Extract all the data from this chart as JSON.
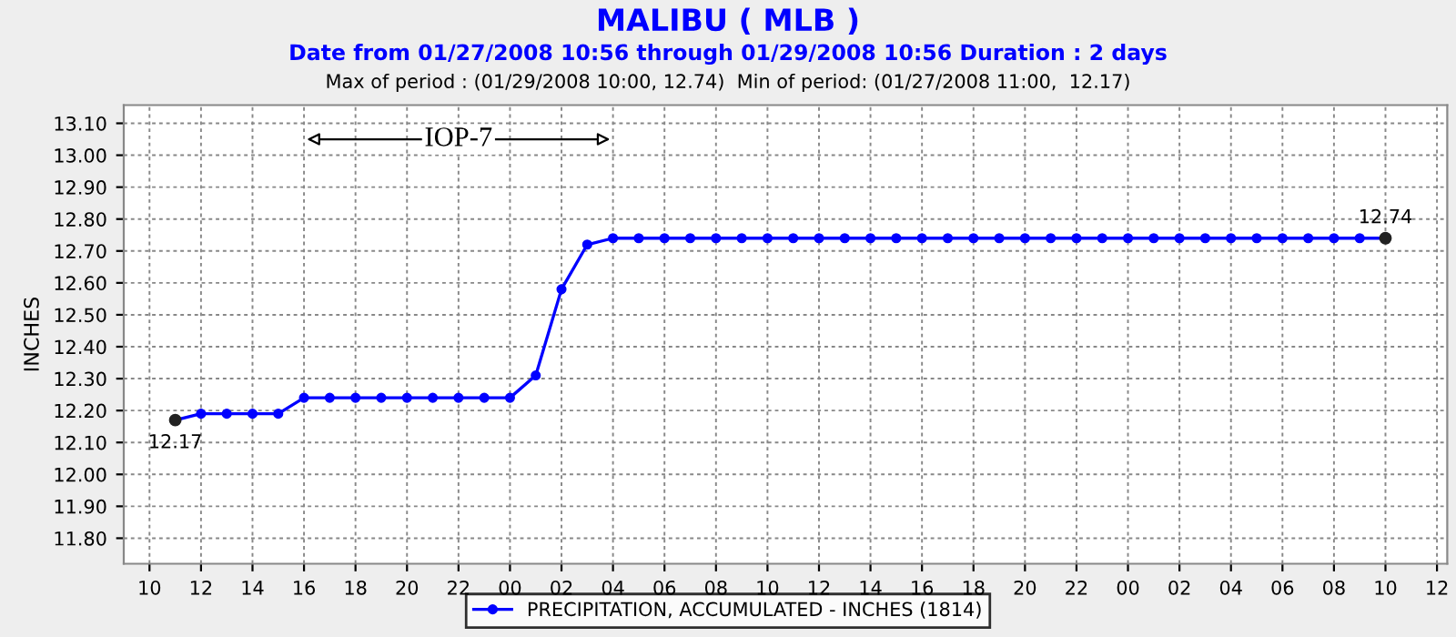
{
  "chart_data": {
    "type": "line",
    "title": "MALIBU ( MLB )",
    "subtitle": "Date from 01/27/2008 10:56 through 01/29/2008 10:56 Duration : 2 days",
    "ylabel": "INCHES",
    "annotations": [
      "Max of period : (01/29/2008 10:00, 12.74)  Min of period: (01/27/2008 11:00,  12.17)",
      {
        "text": "12.17",
        "x": 11,
        "y": 12.17
      },
      {
        "text": "12.74",
        "x": 58,
        "y": 12.74
      },
      {
        "text": "IOP-7",
        "x": 22,
        "y": 13.05
      }
    ],
    "x": [
      11,
      12,
      13,
      14,
      15,
      16,
      17,
      18,
      19,
      20,
      21,
      22,
      23,
      24,
      25,
      26,
      27,
      28,
      29,
      30,
      31,
      32,
      33,
      34,
      35,
      36,
      37,
      38,
      39,
      40,
      41,
      42,
      43,
      44,
      45,
      46,
      47,
      48,
      49,
      50,
      51,
      52,
      53,
      54,
      55,
      56,
      57,
      58
    ],
    "series": [
      {
        "name": "PRECIPITATION, ACCUMULATED - INCHES (1814)",
        "color": "#0000ff",
        "values": [
          12.17,
          12.19,
          12.19,
          12.19,
          12.19,
          12.24,
          12.24,
          12.24,
          12.24,
          12.24,
          12.24,
          12.24,
          12.24,
          12.24,
          12.31,
          12.58,
          12.72,
          12.74,
          12.74,
          12.74,
          12.74,
          12.74,
          12.74,
          12.74,
          12.74,
          12.74,
          12.74,
          12.74,
          12.74,
          12.74,
          12.74,
          12.74,
          12.74,
          12.74,
          12.74,
          12.74,
          12.74,
          12.74,
          12.74,
          12.74,
          12.74,
          12.74,
          12.74,
          12.74,
          12.74,
          12.74,
          12.74,
          12.74
        ]
      }
    ],
    "xlim": [
      9,
      60.4
    ],
    "xticks": [
      {
        "value": 10,
        "label": "10"
      },
      {
        "value": 12,
        "label": "12"
      },
      {
        "value": 14,
        "label": "14"
      },
      {
        "value": 16,
        "label": "16"
      },
      {
        "value": 18,
        "label": "18"
      },
      {
        "value": 20,
        "label": "20"
      },
      {
        "value": 22,
        "label": "22"
      },
      {
        "value": 24,
        "label": "00"
      },
      {
        "value": 26,
        "label": "02"
      },
      {
        "value": 28,
        "label": "04"
      },
      {
        "value": 30,
        "label": "06"
      },
      {
        "value": 32,
        "label": "08"
      },
      {
        "value": 34,
        "label": "10"
      },
      {
        "value": 36,
        "label": "12"
      },
      {
        "value": 38,
        "label": "14"
      },
      {
        "value": 40,
        "label": "16"
      },
      {
        "value": 42,
        "label": "18"
      },
      {
        "value": 44,
        "label": "20"
      },
      {
        "value": 46,
        "label": "22"
      },
      {
        "value": 48,
        "label": "00"
      },
      {
        "value": 50,
        "label": "02"
      },
      {
        "value": 52,
        "label": "04"
      },
      {
        "value": 54,
        "label": "06"
      },
      {
        "value": 56,
        "label": "08"
      },
      {
        "value": 58,
        "label": "10"
      },
      {
        "value": 60,
        "label": "12"
      }
    ],
    "ylim": [
      11.72,
      13.157
    ],
    "yticks": [
      {
        "value": 11.8,
        "label": "11.80"
      },
      {
        "value": 11.9,
        "label": "11.90"
      },
      {
        "value": 12.0,
        "label": "12.00"
      },
      {
        "value": 12.1,
        "label": "12.10"
      },
      {
        "value": 12.2,
        "label": "12.20"
      },
      {
        "value": 12.3,
        "label": "12.30"
      },
      {
        "value": 12.4,
        "label": "12.40"
      },
      {
        "value": 12.5,
        "label": "12.50"
      },
      {
        "value": 12.6,
        "label": "12.60"
      },
      {
        "value": 12.7,
        "label": "12.70"
      },
      {
        "value": 12.8,
        "label": "12.80"
      },
      {
        "value": 12.9,
        "label": "12.90"
      },
      {
        "value": 13.0,
        "label": "13.00"
      },
      {
        "value": 13.1,
        "label": "13.10"
      }
    ],
    "grid": true,
    "legend": "bottom",
    "marker": "circle",
    "line_style": "solid"
  }
}
